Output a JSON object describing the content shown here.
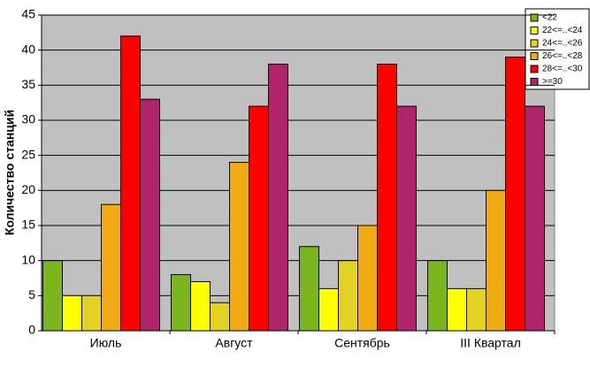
{
  "chart_data": {
    "type": "bar",
    "y_label": "Количество станций",
    "categories": [
      "Июль",
      "Август",
      "Сентябрь",
      "III Квартал"
    ],
    "series": [
      {
        "name": "<22",
        "color": "#7ab51d",
        "values": [
          10,
          8,
          12,
          10
        ]
      },
      {
        "name": "22<=..<24",
        "color": "#ffff00",
        "values": [
          5,
          7,
          6,
          6
        ]
      },
      {
        "name": "24<=..<26",
        "color": "#e2d224",
        "values": [
          5,
          4,
          10,
          6
        ]
      },
      {
        "name": "26<=..<28",
        "color": "#f0aa14",
        "values": [
          18,
          24,
          15,
          20
        ]
      },
      {
        "name": "28<=..<30",
        "color": "#ff0000",
        "values": [
          42,
          32,
          38,
          39
        ]
      },
      {
        "name": ">=30",
        "color": "#b0246c",
        "values": [
          33,
          38,
          32,
          32
        ]
      }
    ],
    "ylim": [
      0,
      45
    ],
    "yticks": [
      0,
      5,
      10,
      15,
      20,
      25,
      30,
      35,
      40,
      45
    ],
    "grid": true,
    "legend": "top-right",
    "plot_background": "#c0c0c0"
  }
}
